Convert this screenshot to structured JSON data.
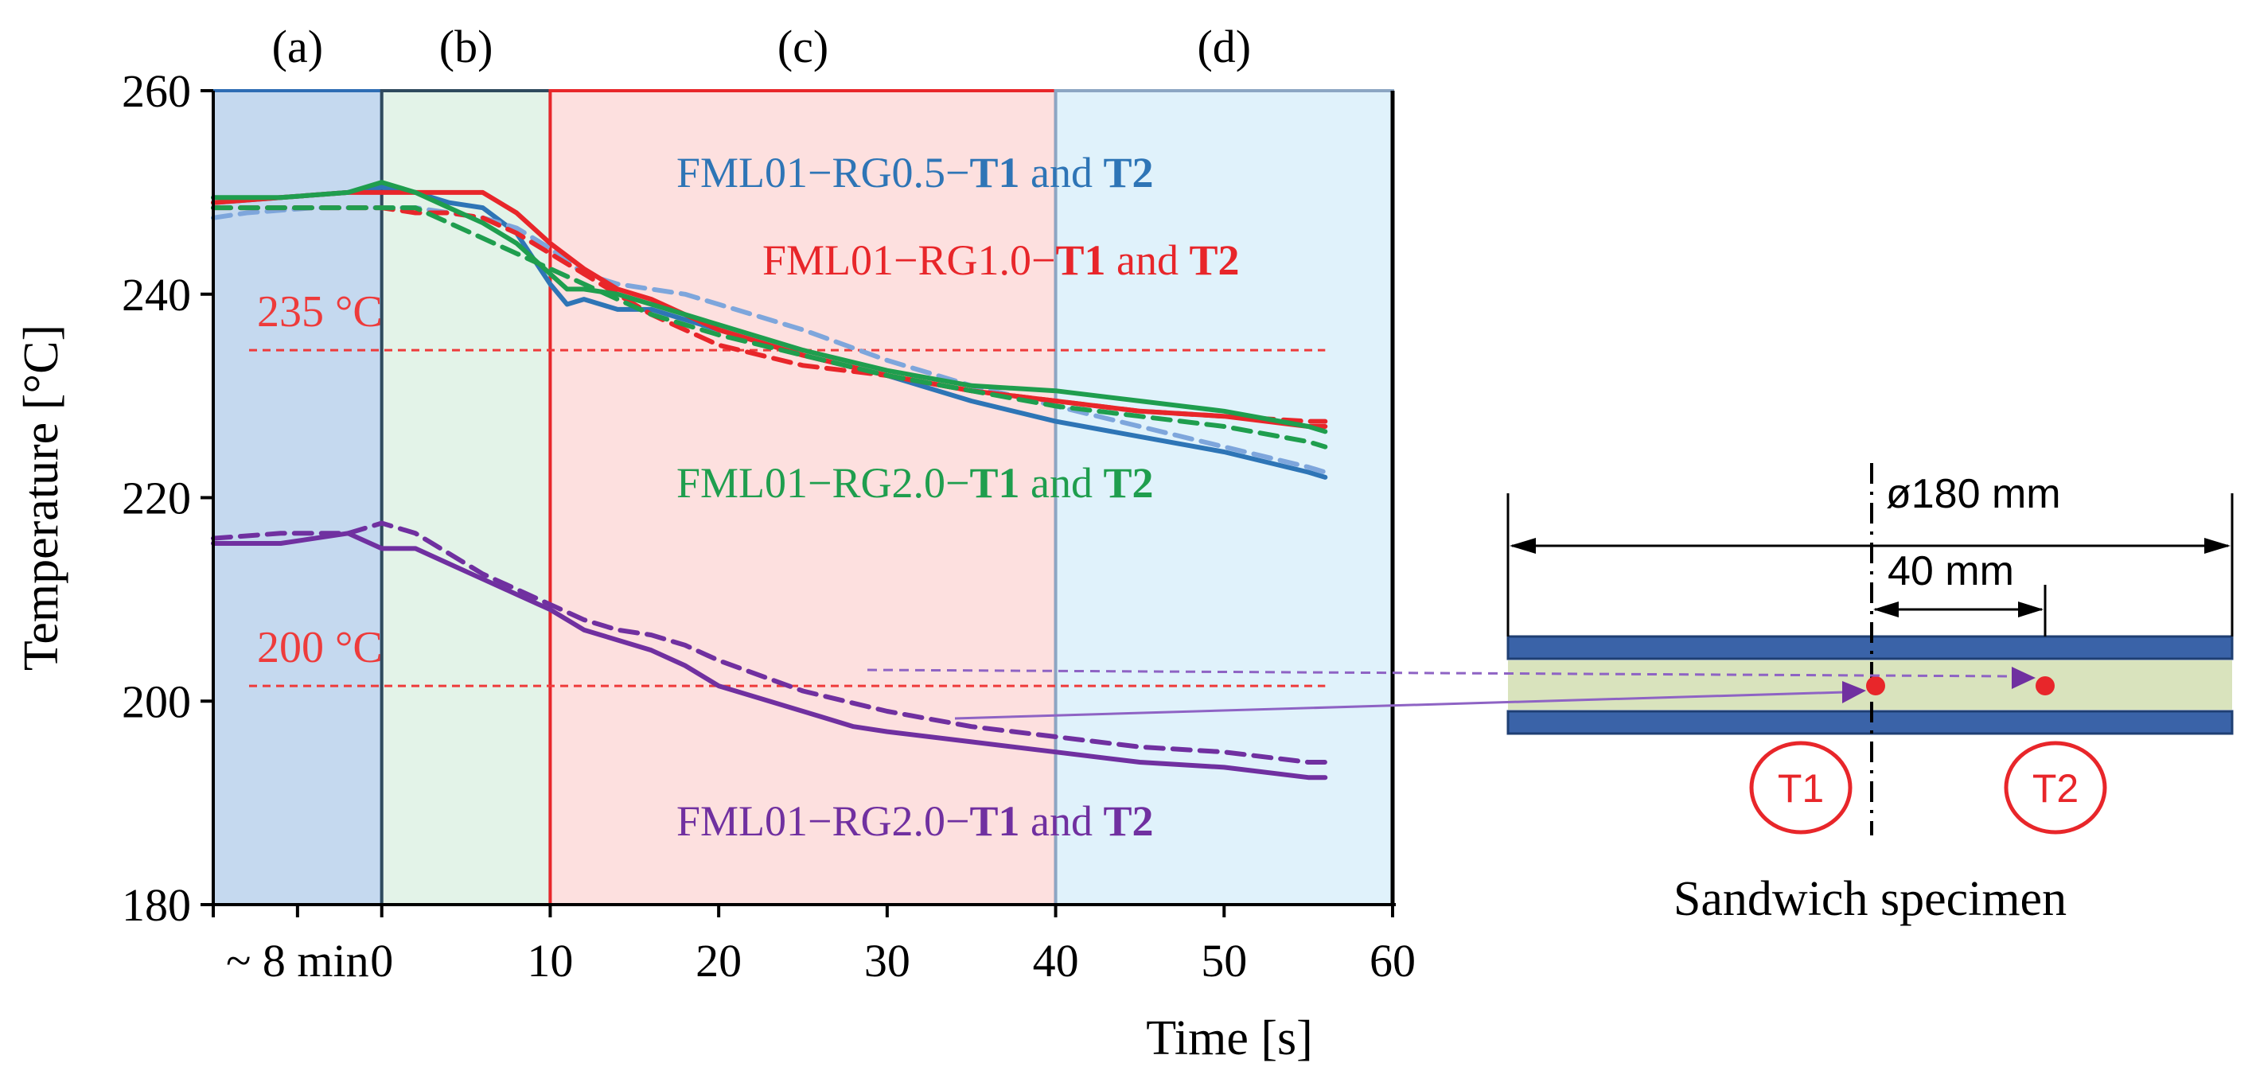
{
  "chart_data": {
    "type": "line",
    "xlabel": "Time [s]",
    "ylabel": "Temperature [°C]",
    "ylim": [
      180,
      260
    ],
    "xlim": [
      -10,
      60
    ],
    "y_ticks": [
      "180",
      "200",
      "220",
      "240",
      "260"
    ],
    "x_ticks": [
      {
        "x": 0,
        "label": "0"
      },
      {
        "x": 10,
        "label": "10"
      },
      {
        "x": 20,
        "label": "20"
      },
      {
        "x": 30,
        "label": "30"
      },
      {
        "x": 40,
        "label": "40"
      },
      {
        "x": 50,
        "label": "50"
      },
      {
        "x": 60,
        "label": "60"
      }
    ],
    "x_pre_label": "~ 8 min",
    "phases": [
      {
        "label": "(a)",
        "from": -10,
        "to": 0,
        "color": "#c5d9ef",
        "border": "#2e6db4"
      },
      {
        "label": "(b)",
        "from": 0,
        "to": 10,
        "color": "#e3f3e8",
        "border": "#2f4a5e"
      },
      {
        "label": "(c)",
        "from": 10,
        "to": 40,
        "color": "#fde0df",
        "border": "#e8262a"
      },
      {
        "label": "(d)",
        "from": 40,
        "to": 60,
        "color": "#e0f2fb",
        "border": "#8ca6c3"
      }
    ],
    "reference_lines": [
      {
        "label": "235 °C",
        "value": 234.5,
        "color": "#ee3b3b"
      },
      {
        "label": "200 °C",
        "value": 201.5,
        "color": "#ee3b3b"
      }
    ],
    "series": [
      {
        "name": "FML01-RG0.5-T1",
        "color": "#2e75b6",
        "dash": false,
        "x": [
          -10,
          -6,
          -2,
          0,
          2,
          4,
          6,
          8,
          10,
          11,
          12,
          13,
          14,
          16,
          18,
          20,
          25,
          30,
          35,
          40,
          45,
          50,
          55,
          56
        ],
        "y": [
          249,
          249.5,
          250,
          250.5,
          250,
          249,
          248.5,
          246,
          241,
          239,
          239.5,
          239,
          238.5,
          238.5,
          237.5,
          236.5,
          234,
          232,
          229.5,
          227.5,
          226,
          224.5,
          222.5,
          222
        ]
      },
      {
        "name": "FML01-RG0.5-T2",
        "color": "#7ea6dc",
        "dash": true,
        "x": [
          -10,
          -8,
          -4,
          0,
          2,
          4,
          6,
          8,
          10,
          12,
          14,
          16,
          18,
          20,
          25,
          30,
          35,
          40,
          45,
          50,
          55,
          56
        ],
        "y": [
          247.5,
          248,
          248.5,
          248.5,
          248.5,
          248,
          247.5,
          246.5,
          244.5,
          242,
          241,
          240.5,
          240,
          239,
          236.5,
          233.5,
          231,
          229,
          227,
          225,
          223,
          222.5
        ]
      },
      {
        "name": "FML01-RG1.0-T1",
        "color": "#e8262a",
        "dash": false,
        "x": [
          -10,
          -6,
          -2,
          0,
          2,
          4,
          6,
          8,
          10,
          12,
          14,
          16,
          18,
          20,
          25,
          30,
          35,
          40,
          45,
          50,
          55,
          56
        ],
        "y": [
          249,
          249.5,
          250,
          250,
          250,
          250,
          250,
          248,
          245,
          242.5,
          240.5,
          239.5,
          238,
          236.5,
          234,
          232,
          230.5,
          229.5,
          228.5,
          228,
          227,
          227
        ]
      },
      {
        "name": "FML01-RG1.0-T2",
        "color": "#e8262a",
        "dash": true,
        "x": [
          -10,
          -6,
          -2,
          0,
          2,
          4,
          6,
          8,
          10,
          12,
          14,
          16,
          18,
          20,
          25,
          30,
          35,
          40,
          45,
          50,
          55,
          56
        ],
        "y": [
          248.5,
          248.5,
          248.5,
          248.5,
          248,
          248,
          247.5,
          246,
          244,
          242,
          240,
          238,
          236.5,
          235,
          233,
          232,
          230.5,
          229.5,
          228.5,
          228,
          227.5,
          227.5
        ]
      },
      {
        "name": "FML01-RG2.0-T1",
        "color": "#1f9e4e",
        "dash": false,
        "x": [
          -10,
          -6,
          -2,
          0,
          2,
          4,
          6,
          8,
          10,
          11,
          12,
          14,
          16,
          18,
          20,
          25,
          30,
          35,
          40,
          45,
          50,
          55,
          56
        ],
        "y": [
          249.5,
          249.5,
          250,
          251,
          250,
          248.5,
          247,
          245,
          242,
          240.5,
          240.5,
          240,
          239,
          238,
          237,
          234.5,
          232.5,
          231,
          230.5,
          229.5,
          228.5,
          227,
          226.5
        ]
      },
      {
        "name": "FML01-RG2.0-T2",
        "color": "#1f9e4e",
        "dash": true,
        "x": [
          -10,
          -6,
          -2,
          0,
          2,
          4,
          6,
          8,
          10,
          12,
          14,
          16,
          18,
          20,
          25,
          30,
          35,
          40,
          45,
          50,
          55,
          56
        ],
        "y": [
          248.5,
          248.5,
          248.5,
          248.5,
          248.5,
          247,
          245.5,
          244,
          242.5,
          241,
          239.5,
          238,
          237,
          236,
          234,
          232,
          230.5,
          229,
          228,
          227,
          225.5,
          225
        ]
      },
      {
        "name": "FML01-RG2.0-T1 (purple)",
        "color": "#7030a0",
        "dash": false,
        "x": [
          -10,
          -6,
          -2,
          0,
          2,
          4,
          6,
          8,
          10,
          12,
          14,
          16,
          18,
          20,
          22,
          24,
          26,
          28,
          30,
          35,
          40,
          45,
          50,
          55,
          56
        ],
        "y": [
          215.5,
          215.5,
          216.5,
          215,
          215,
          213.5,
          212,
          210.5,
          209,
          207,
          206,
          205,
          203.5,
          201.5,
          200.5,
          199.5,
          198.5,
          197.5,
          197,
          196,
          195,
          194,
          193.5,
          192.5,
          192.5
        ]
      },
      {
        "name": "FML01-RG2.0-T2 (purple)",
        "color": "#7030a0",
        "dash": true,
        "x": [
          -10,
          -6,
          -2,
          0,
          1,
          2,
          4,
          6,
          8,
          10,
          12,
          14,
          16,
          18,
          20,
          25,
          30,
          35,
          40,
          45,
          50,
          55,
          56
        ],
        "y": [
          216,
          216.5,
          216.5,
          217.5,
          217,
          216.5,
          214.5,
          212.5,
          211,
          209.5,
          208,
          207,
          206.5,
          205.5,
          204,
          201,
          199,
          197.5,
          196.5,
          195.5,
          195,
          194,
          194
        ]
      }
    ],
    "phase_labels": [
      "(a)",
      "(b)",
      "(c)",
      "(d)"
    ],
    "legend_texts": [
      {
        "prefix": "FML01−RG0.5−",
        "t1": "T1",
        "mid": " and ",
        "t2": "T2",
        "color": "#2e75b6"
      },
      {
        "prefix": "FML01−RG1.0−",
        "t1": "T1",
        "mid": " and ",
        "t2": "T2",
        "color": "#e8262a"
      },
      {
        "prefix": "FML01−RG2.0−",
        "t1": "T1",
        "mid": " and ",
        "t2": "T2",
        "color": "#1f9e4e"
      },
      {
        "prefix": "FML01−RG2.0−",
        "t1": "T1",
        "mid": " and ",
        "t2": "T2",
        "color": "#7030a0"
      }
    ]
  },
  "specimen": {
    "diameter_label": "ø180 mm",
    "offset_label": "40 mm",
    "t1_label": "T1",
    "t2_label": "T2",
    "caption": "Sandwich specimen"
  }
}
